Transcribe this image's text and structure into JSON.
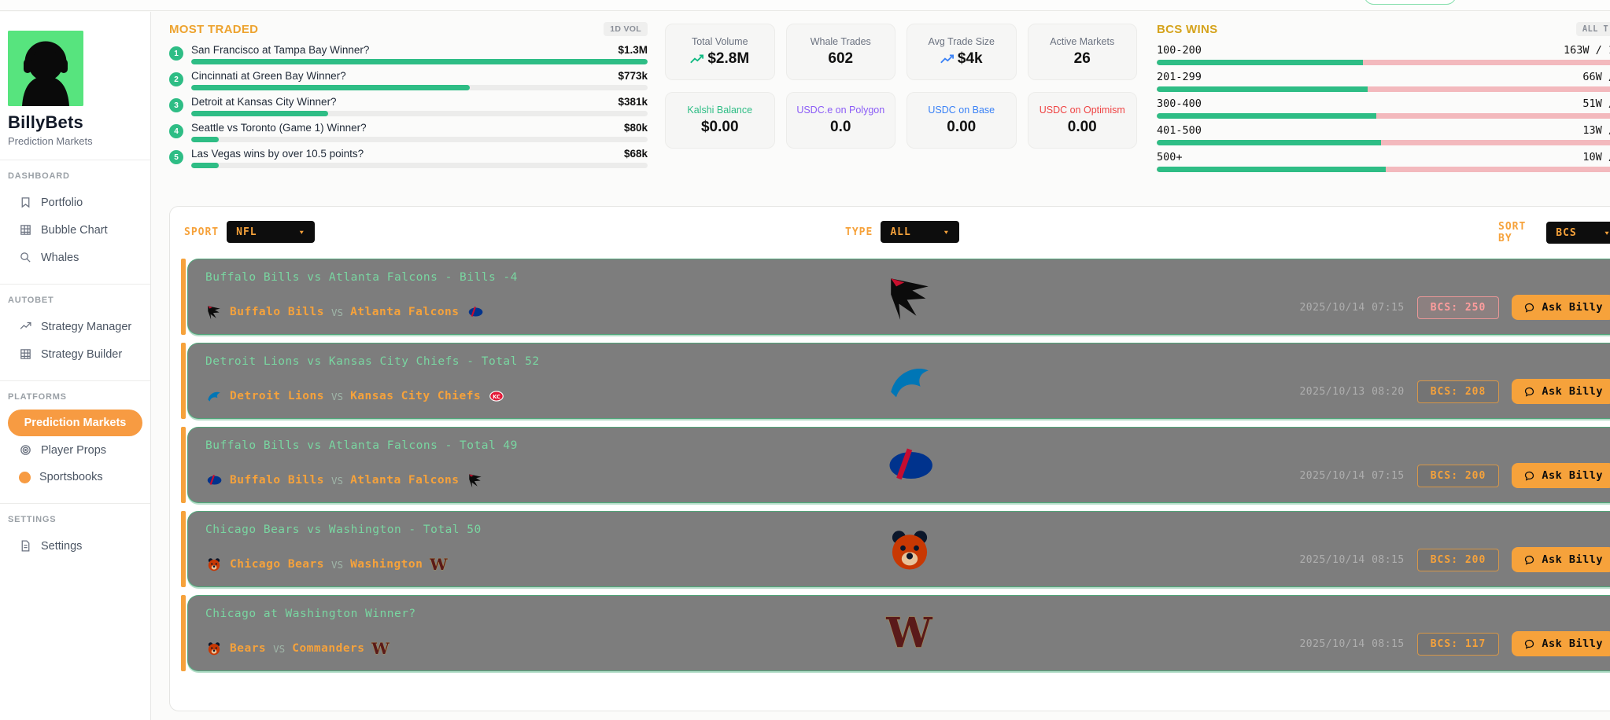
{
  "sidebar": {
    "title": "BillyBets",
    "subtitle": "Prediction Markets",
    "sections": [
      {
        "label": "DASHBOARD",
        "items": [
          {
            "label": "Portfolio"
          },
          {
            "label": "Bubble Chart"
          },
          {
            "label": "Whales"
          }
        ]
      },
      {
        "label": "AUTOBET",
        "items": [
          {
            "label": "Strategy Manager"
          },
          {
            "label": "Strategy Builder"
          }
        ]
      },
      {
        "label": "PLATFORMS",
        "items": [
          {
            "label": "Prediction Markets",
            "active": true
          },
          {
            "label": "Player Props"
          },
          {
            "label": "Sportsbooks"
          }
        ]
      },
      {
        "label": "SETTINGS",
        "items": [
          {
            "label": "Settings"
          }
        ]
      }
    ]
  },
  "most_traded": {
    "title": "MOST TRADED",
    "badge": "1D VOL",
    "items": [
      {
        "rank": "1",
        "label": "San Francisco at Tampa Bay Winner?",
        "value": "$1.3M",
        "pct": 100
      },
      {
        "rank": "2",
        "label": "Cincinnati at Green Bay Winner?",
        "value": "$773k",
        "pct": 61
      },
      {
        "rank": "3",
        "label": "Detroit at Kansas City Winner?",
        "value": "$381k",
        "pct": 30
      },
      {
        "rank": "4",
        "label": "Seattle vs Toronto (Game 1) Winner?",
        "value": "$80k",
        "pct": 6
      },
      {
        "rank": "5",
        "label": "Las Vegas wins by over 10.5 points?",
        "value": "$68k",
        "pct": 6
      }
    ]
  },
  "stats": [
    {
      "label": "Total Volume",
      "value": "$2.8M",
      "trend_color": "#10b981"
    },
    {
      "label": "Whale Trades",
      "value": "602"
    },
    {
      "label": "Avg Trade Size",
      "value": "$4k",
      "trend_color": "#3b82f6"
    },
    {
      "label": "Active Markets",
      "value": "26"
    },
    {
      "label": "Kalshi Balance",
      "value": "$0.00",
      "label_color": "#2ebd85"
    },
    {
      "label": "USDC.e on Polygon",
      "value": "0.0",
      "label_color": "#8b5cf6"
    },
    {
      "label": "USDC on Base",
      "value": "0.00",
      "label_color": "#3b82f6"
    },
    {
      "label": "USDC on Optimism",
      "value": "0.00",
      "label_color": "#ef4444"
    }
  ],
  "bcs_wins": {
    "title": "BCS WINS",
    "badge": "ALL T",
    "rows": [
      {
        "range": "100-200",
        "value": "163W / 1",
        "green_pct": 45
      },
      {
        "range": "201-299",
        "value": "66W /",
        "green_pct": 46
      },
      {
        "range": "300-400",
        "value": "51W /",
        "green_pct": 48
      },
      {
        "range": "401-500",
        "value": "13W /",
        "green_pct": 49
      },
      {
        "range": "500+",
        "value": "10W /",
        "green_pct": 50
      }
    ]
  },
  "filters": {
    "sport_label": "SPORT",
    "sport_value": "NFL",
    "type_label": "TYPE",
    "type_value": "ALL",
    "sort_label": "SORT BY",
    "sort_value": "BCS"
  },
  "markets": [
    {
      "title": "Buffalo Bills vs Atlanta Falcons - Bills -4",
      "away": "Buffalo Bills",
      "home": "Atlanta Falcons",
      "vs": "VS",
      "left_logo": "falcons",
      "right_logo": "bills",
      "center_logo": "falcons",
      "datetime": "2025/10/14 07:15",
      "bcs": "BCS: 250",
      "badge_variant": "pink",
      "ask": "Ask Billy"
    },
    {
      "title": "Detroit Lions vs Kansas City Chiefs - Total 52",
      "away": "Detroit Lions",
      "home": "Kansas City Chiefs",
      "vs": "VS",
      "left_logo": "lions",
      "right_logo": "chiefs",
      "center_logo": "lions",
      "datetime": "2025/10/13 08:20",
      "bcs": "BCS: 208",
      "badge_variant": "orange",
      "ask": "Ask Billy"
    },
    {
      "title": "Buffalo Bills vs Atlanta Falcons - Total 49",
      "away": "Buffalo Bills",
      "home": "Atlanta Falcons",
      "vs": "VS",
      "left_logo": "bills",
      "right_logo": "falcons",
      "center_logo": "bills",
      "datetime": "2025/10/14 07:15",
      "bcs": "BCS: 200",
      "badge_variant": "orange",
      "ask": "Ask Billy"
    },
    {
      "title": "Chicago Bears vs Washington - Total 50",
      "away": "Chicago Bears",
      "home": "Washington",
      "vs": "VS",
      "left_logo": "bears",
      "right_logo": "commanders",
      "center_logo": "bears",
      "datetime": "2025/10/14 08:15",
      "bcs": "BCS: 200",
      "badge_variant": "orange",
      "ask": "Ask Billy"
    },
    {
      "title": "Chicago at Washington Winner?",
      "away": "Bears",
      "home": "Commanders",
      "vs": "VS",
      "left_logo": "bears",
      "right_logo": "commanders",
      "center_logo": "commanders",
      "datetime": "2025/10/14 08:15",
      "bcs": "BCS: 117",
      "badge_variant": "orange",
      "ask": "Ask Billy"
    }
  ],
  "colors": {
    "accent_orange": "#f6a23b",
    "green": "#2ebd85",
    "pink": "#f3b9bd",
    "card_gray": "#7d7d7d"
  }
}
